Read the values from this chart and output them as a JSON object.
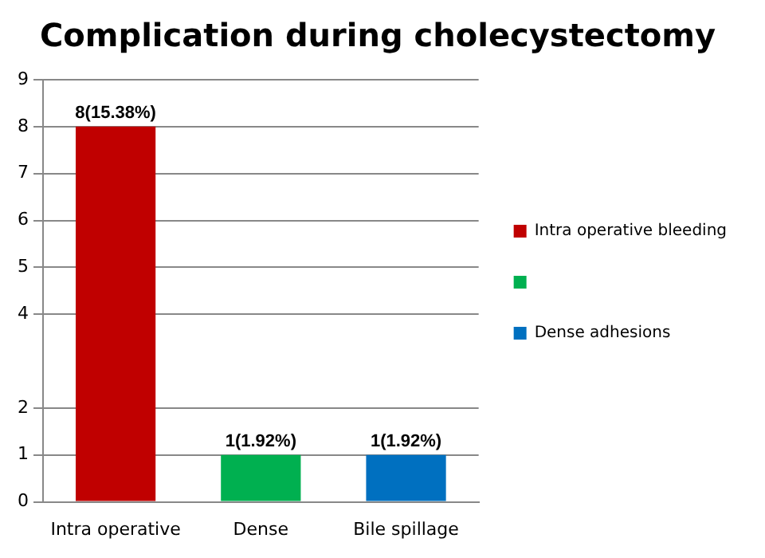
{
  "chart_data": {
    "type": "bar",
    "title": "Complication during cholecystectomy",
    "categories": [
      "Intra operative",
      "Dense",
      "Bile spillage"
    ],
    "series": [
      {
        "name": "Intra operative bleeding",
        "color": "#c00000",
        "values": [
          8,
          null,
          null
        ],
        "value_labels": [
          "8(15.38%)",
          null,
          null
        ]
      },
      {
        "color": "#00b050",
        "values": [
          null,
          1,
          null
        ],
        "value_labels": [
          null,
          "1(1.92%)",
          null
        ]
      },
      {
        "name": "Dense adhesions",
        "color": "#0070c0",
        "values": [
          null,
          null,
          1
        ],
        "value_labels": [
          null,
          null,
          "1(1.92%)"
        ]
      }
    ],
    "ylim": [
      0,
      9
    ],
    "yticks": [
      0,
      1,
      2,
      4,
      5,
      6,
      7,
      8,
      9
    ],
    "grid": "y",
    "legend": "right"
  }
}
